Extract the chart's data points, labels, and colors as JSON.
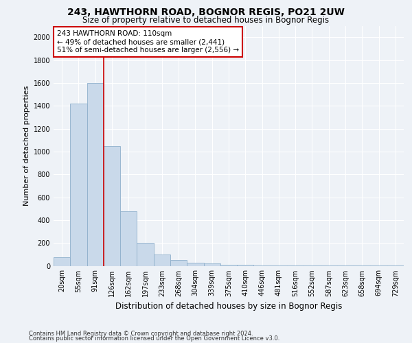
{
  "title": "243, HAWTHORN ROAD, BOGNOR REGIS, PO21 2UW",
  "subtitle": "Size of property relative to detached houses in Bognor Regis",
  "xlabel": "Distribution of detached houses by size in Bognor Regis",
  "ylabel": "Number of detached properties",
  "categories": [
    "20sqm",
    "55sqm",
    "91sqm",
    "126sqm",
    "162sqm",
    "197sqm",
    "233sqm",
    "268sqm",
    "304sqm",
    "339sqm",
    "375sqm",
    "410sqm",
    "446sqm",
    "481sqm",
    "516sqm",
    "552sqm",
    "587sqm",
    "623sqm",
    "658sqm",
    "694sqm",
    "729sqm"
  ],
  "values": [
    75,
    1420,
    1600,
    1050,
    480,
    200,
    100,
    50,
    30,
    20,
    10,
    8,
    5,
    5,
    4,
    3,
    2,
    2,
    1,
    1,
    1
  ],
  "bar_color": "#c9d9ea",
  "bar_edge_color": "#8fb0cc",
  "red_line_x": 2.5,
  "annotation_line1": "243 HAWTHORN ROAD: 110sqm",
  "annotation_line2": "← 49% of detached houses are smaller (2,441)",
  "annotation_line3": "51% of semi-detached houses are larger (2,556) →",
  "annotation_box_facecolor": "#ffffff",
  "annotation_box_edgecolor": "#cc0000",
  "ylim": [
    0,
    2100
  ],
  "yticks": [
    0,
    200,
    400,
    600,
    800,
    1000,
    1200,
    1400,
    1600,
    1800,
    2000
  ],
  "footer1": "Contains HM Land Registry data © Crown copyright and database right 2024.",
  "footer2": "Contains public sector information licensed under the Open Government Licence v3.0.",
  "background_color": "#eef2f7",
  "plot_background": "#eef2f7",
  "grid_color": "#ffffff",
  "title_fontsize": 10,
  "subtitle_fontsize": 8.5,
  "ylabel_fontsize": 8,
  "xlabel_fontsize": 8.5,
  "tick_fontsize": 7,
  "footer_fontsize": 6,
  "ann_fontsize": 7.5
}
